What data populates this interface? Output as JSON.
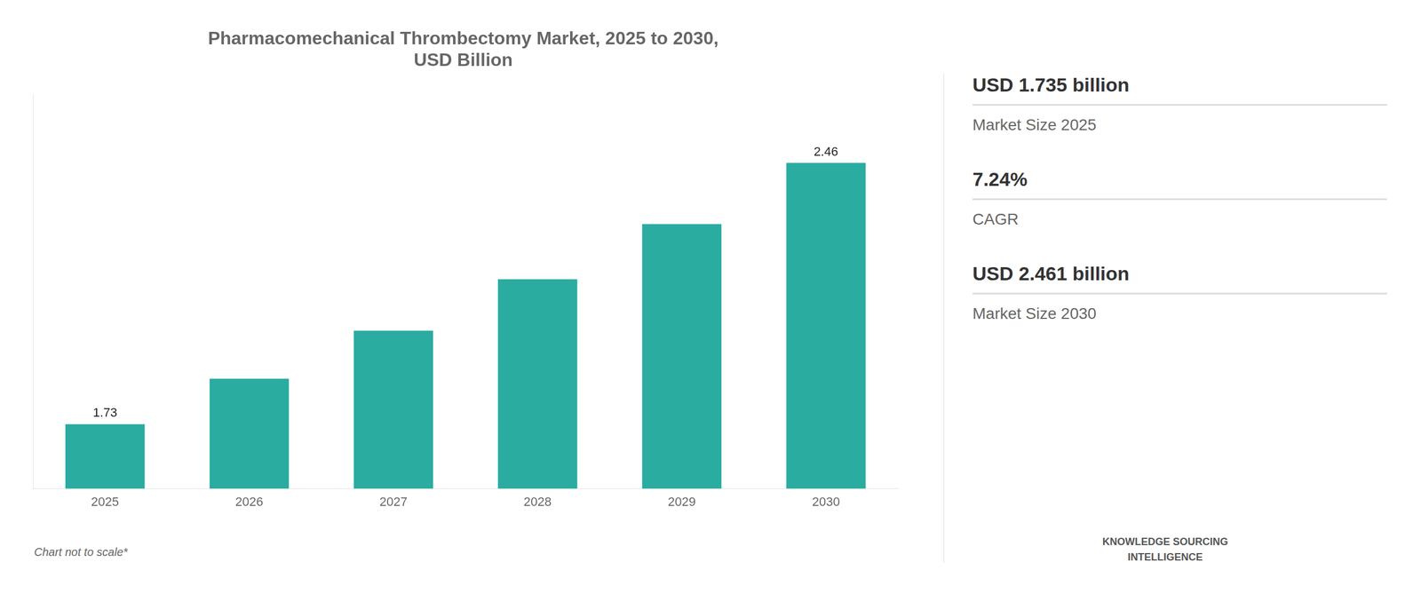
{
  "chart_data": {
    "type": "bar",
    "title": "Pharmacomechanical Thrombectomy Market, 2025 to 2030,",
    "subtitle": "USD Billion",
    "categories": [
      "2025",
      "2026",
      "2027",
      "2028",
      "2029",
      "2030"
    ],
    "values": [
      1.73,
      1.857,
      1.991,
      2.135,
      2.289,
      2.46
    ],
    "value_labels": [
      "1.73",
      null,
      null,
      null,
      null,
      "2.46"
    ],
    "data_labels": true,
    "color": "#2aaca0",
    "ylim": [
      1.55,
      2.65
    ],
    "grid": false,
    "tick_labels": "x",
    "annotations": [
      "Chart not to scale*",
      "USD 1.735 billion",
      "Market Size 2025",
      "7.24%",
      "CAGR",
      "USD 2.461 billion",
      "Market Size 2030",
      "KNOWLEDGE SOURCING\nINTELLIGENCE"
    ]
  }
}
